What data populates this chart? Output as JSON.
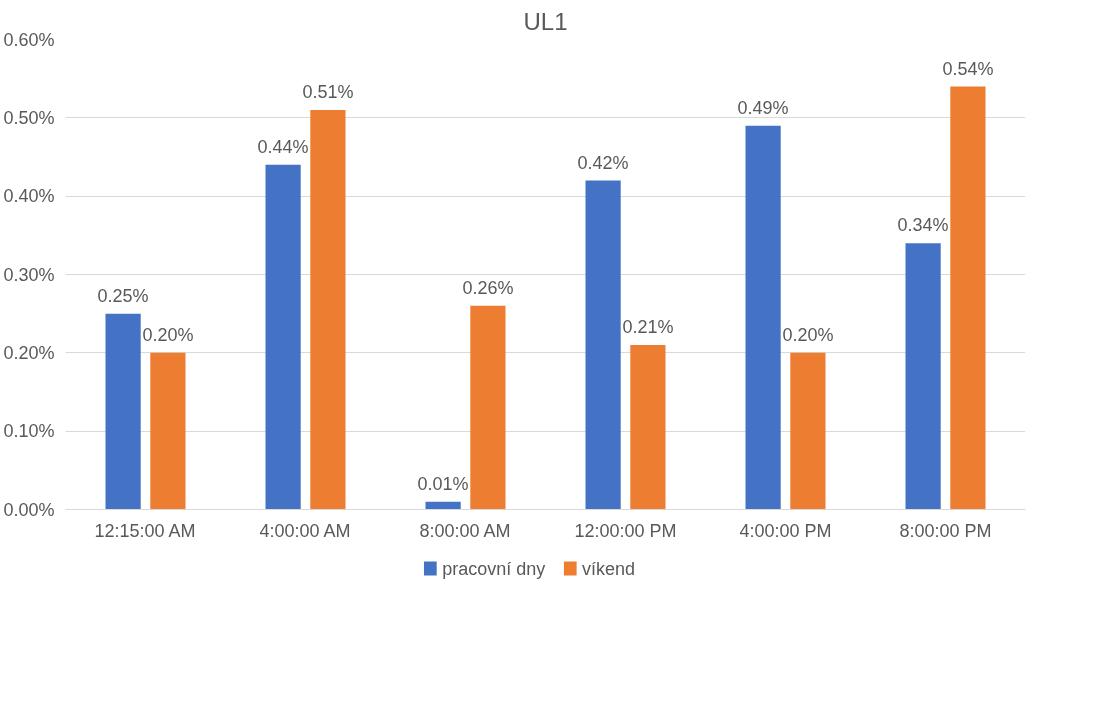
{
  "chart_data": {
    "type": "bar",
    "title": "UL1",
    "categories": [
      "12:15:00 AM",
      "4:00:00 AM",
      "8:00:00 AM",
      "12:00:00 PM",
      "4:00:00 PM",
      "8:00:00 PM"
    ],
    "series": [
      {
        "name": "pracovní dny",
        "color": "#4472c4",
        "values": [
          0.25,
          0.44,
          0.01,
          0.42,
          0.49,
          0.34
        ],
        "value_labels": [
          "0.25%",
          "0.44%",
          "0.01%",
          "0.42%",
          "0.49%",
          "0.34%"
        ]
      },
      {
        "name": "víkend",
        "color": "#ed7d31",
        "values": [
          0.2,
          0.51,
          0.26,
          0.21,
          0.2,
          0.54
        ],
        "value_labels": [
          "0.20%",
          "0.51%",
          "0.26%",
          "0.21%",
          "0.20%",
          "0.54%"
        ]
      }
    ],
    "ylim": [
      0,
      0.6
    ],
    "yticks": [
      {
        "value": 0,
        "label": "0.00%"
      },
      {
        "value": 0.1,
        "label": "0.10%"
      },
      {
        "value": 0.2,
        "label": "0.20%"
      },
      {
        "value": 0.3,
        "label": "0.30%"
      },
      {
        "value": 0.4,
        "label": "0.40%"
      },
      {
        "value": 0.5,
        "label": "0.50%"
      },
      {
        "value": 0.6,
        "label": "0.60%"
      }
    ],
    "grid": "y",
    "legend": "bottom"
  }
}
